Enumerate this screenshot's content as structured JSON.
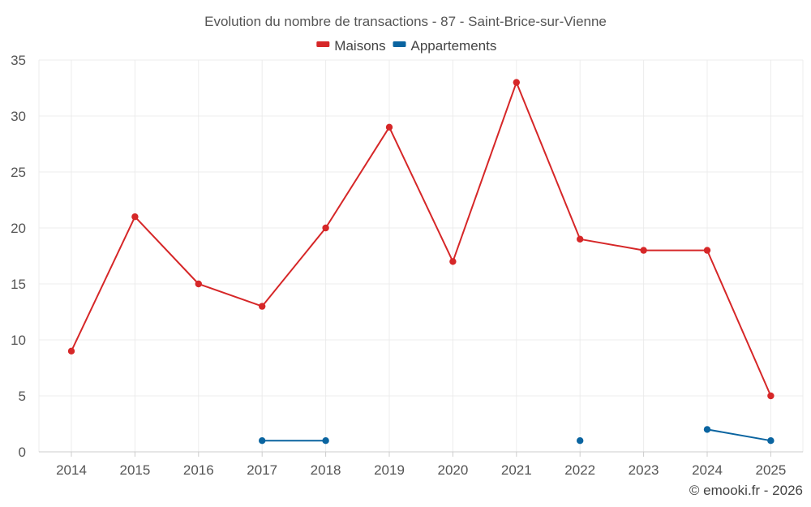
{
  "chart_data": {
    "type": "line",
    "title": "Evolution du nombre de transactions - 87 - Saint-Brice-sur-Vienne",
    "xlabel": "",
    "ylabel": "",
    "categories": [
      "2014",
      "2015",
      "2016",
      "2017",
      "2018",
      "2019",
      "2020",
      "2021",
      "2022",
      "2023",
      "2024",
      "2025"
    ],
    "ylim": [
      0,
      35
    ],
    "yticks": [
      "0",
      "5",
      "10",
      "15",
      "20",
      "25",
      "30",
      "35"
    ],
    "grid": true,
    "legend_position": "top-center",
    "series": [
      {
        "name": "Maisons",
        "color": "#d62728",
        "values": [
          9,
          21,
          15,
          13,
          20,
          29,
          17,
          33,
          19,
          18,
          18,
          5
        ]
      },
      {
        "name": "Appartements",
        "color": "#0a64a0",
        "values": [
          null,
          null,
          null,
          1,
          1,
          null,
          null,
          null,
          1,
          null,
          2,
          1
        ]
      }
    ]
  },
  "credit": "© emooki.fr - 2026"
}
